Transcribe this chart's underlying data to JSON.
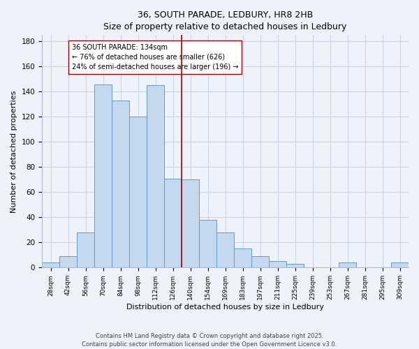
{
  "title": "36, SOUTH PARADE, LEDBURY, HR8 2HB",
  "subtitle": "Size of property relative to detached houses in Ledbury",
  "xlabel": "Distribution of detached houses by size in Ledbury",
  "ylabel": "Number of detached properties",
  "bar_labels": [
    "28sqm",
    "42sqm",
    "56sqm",
    "70sqm",
    "84sqm",
    "98sqm",
    "112sqm",
    "126sqm",
    "140sqm",
    "154sqm",
    "169sqm",
    "183sqm",
    "197sqm",
    "211sqm",
    "225sqm",
    "239sqm",
    "253sqm",
    "267sqm",
    "281sqm",
    "295sqm",
    "309sqm"
  ],
  "bar_values": [
    4,
    9,
    28,
    146,
    133,
    120,
    145,
    71,
    70,
    38,
    28,
    15,
    9,
    5,
    3,
    0,
    0,
    4,
    0,
    0,
    4
  ],
  "bar_color": "#c5d9ee",
  "bar_edge_color": "#6699cc",
  "vline_color": "#aa0000",
  "annotation_line1": "36 SOUTH PARADE: 134sqm",
  "annotation_line2": "← 76% of detached houses are smaller (626)",
  "annotation_line3": "24% of semi-detached houses are larger (196) →",
  "annotation_box_color": "white",
  "annotation_box_edge_color": "#aa0000",
  "ylim": [
    0,
    185
  ],
  "yticks": [
    0,
    20,
    40,
    60,
    80,
    100,
    120,
    140,
    160,
    180
  ],
  "bg_color": "#eef2fa",
  "grid_color": "#c8d4e8",
  "footer_line1": "Contains HM Land Registry data © Crown copyright and database right 2025.",
  "footer_line2": "Contains public sector information licensed under the Open Government Licence v3.0.",
  "figsize": [
    6.0,
    5.0
  ],
  "dpi": 100
}
